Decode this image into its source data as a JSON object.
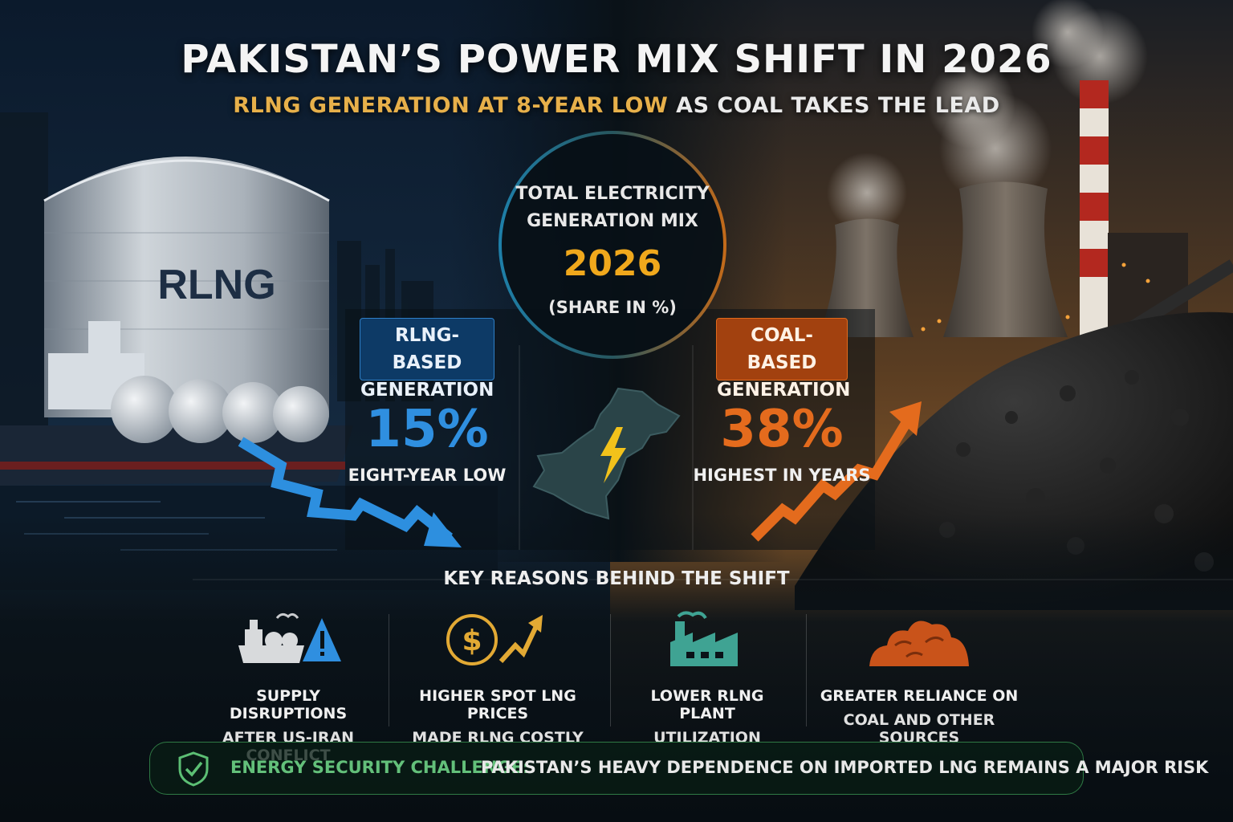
{
  "header": {
    "title": "PAKISTAN’S POWER MIX SHIFT IN 2026",
    "subtitle_highlight": "RLNG GENERATION AT 8-YEAR LOW",
    "subtitle_rest": " AS COAL TAKES THE LEAD"
  },
  "center": {
    "label_line1": "TOTAL ELECTRICITY",
    "label_line2": "GENERATION MIX",
    "year": "2026",
    "share_label": "(SHARE IN %)"
  },
  "tank_label": "RLNG",
  "rlng": {
    "badge_line1": "RLNG-BASED",
    "badge_line2": "GENERATION",
    "value": "15%",
    "note": "EIGHT-YEAR LOW",
    "trend": "down",
    "color": "#2f8fe0"
  },
  "coal": {
    "badge_line1": "COAL-BASED",
    "badge_line2": "GENERATION",
    "value": "38%",
    "note": "HIGHEST IN YEARS",
    "trend": "up",
    "color": "#e46b1d"
  },
  "reasons": {
    "title": "KEY REASONS BEHIND THE SHIFT",
    "items": [
      {
        "icon": "lng-ship-warning-icon",
        "line1": "SUPPLY DISRUPTIONS",
        "line2": "AFTER US-IRAN CONFLICT"
      },
      {
        "icon": "dollar-price-up-icon",
        "line1": "HIGHER SPOT LNG PRICES",
        "line2": "MADE RLNG COSTLY"
      },
      {
        "icon": "factory-icon",
        "line1": "LOWER RLNG PLANT",
        "line2": "UTILIZATION"
      },
      {
        "icon": "coal-pile-icon",
        "line1": "GREATER RELIANCE ON",
        "line2": "COAL AND OTHER SOURCES"
      }
    ]
  },
  "footer": {
    "icon": "shield-check-icon",
    "label": "ENERGY SECURITY CHALLENGE:",
    "message": "PAKISTAN’S HEAVY DEPENDENCE ON IMPORTED LNG REMAINS A MAJOR RISK"
  }
}
